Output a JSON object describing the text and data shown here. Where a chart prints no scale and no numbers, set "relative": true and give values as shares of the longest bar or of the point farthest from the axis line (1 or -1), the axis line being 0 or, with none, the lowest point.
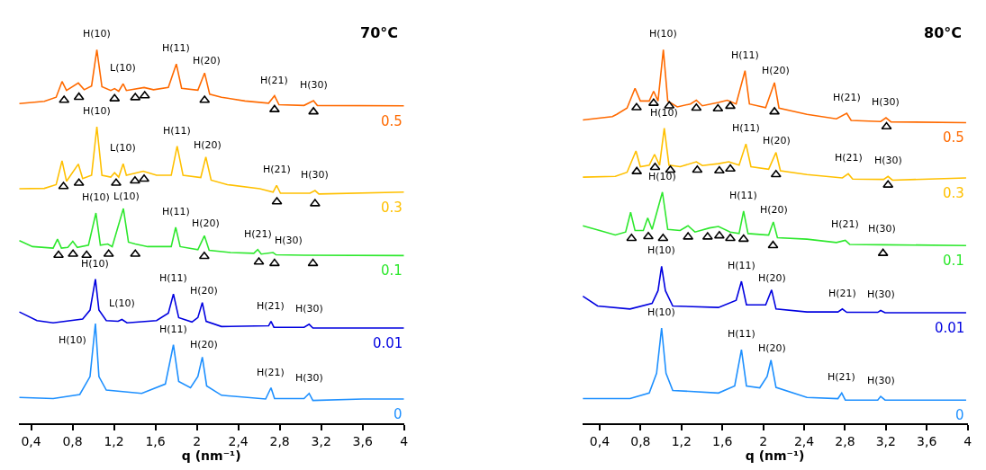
{
  "chart_data": [
    {
      "type": "line",
      "title": "70°C",
      "xlabel": "q (nm⁻¹)",
      "relative": true,
      "grid": false,
      "legend": false,
      "line_style": "solid",
      "xlim": [
        0.28,
        4
      ],
      "xticks": [
        {
          "value": 0.4,
          "label": "0,4"
        },
        {
          "value": 0.8,
          "label": "0,8"
        },
        {
          "value": 1.2,
          "label": "1,2"
        },
        {
          "value": 1.6,
          "label": "1,6"
        },
        2,
        {
          "value": 2.4,
          "label": "2,4"
        },
        {
          "value": 2.8,
          "label": "2,8"
        },
        {
          "value": 3.2,
          "label": "3,2"
        },
        {
          "value": 3.6,
          "label": "3,6"
        },
        4
      ],
      "series": [
        {
          "name": "0.5",
          "color": "#ff6a00",
          "x": [
            0.287,
            0.528,
            0.642,
            0.699,
            0.742,
            0.856,
            0.913,
            0.984,
            1.035,
            1.084,
            1.169,
            1.206,
            1.246,
            1.289,
            1.32,
            1.491,
            1.582,
            1.725,
            1.802,
            1.853,
            2.01,
            2.075,
            2.124,
            2.238,
            2.465,
            2.693,
            2.75,
            2.793,
            3.035,
            3.126,
            3.163,
            4.0
          ],
          "values": [
            0.856,
            0.862,
            0.873,
            0.915,
            0.891,
            0.911,
            0.893,
            0.903,
            1.0,
            0.901,
            0.891,
            0.896,
            0.889,
            0.909,
            0.891,
            0.899,
            0.893,
            0.899,
            0.962,
            0.897,
            0.892,
            0.938,
            0.881,
            0.873,
            0.863,
            0.857,
            0.877,
            0.853,
            0.851,
            0.864,
            0.851,
            0.85
          ]
        },
        {
          "name": "0.3",
          "color": "#ffc000",
          "x": [
            0.287,
            0.528,
            0.642,
            0.699,
            0.742,
            0.856,
            0.898,
            0.984,
            1.035,
            1.084,
            1.169,
            1.206,
            1.246,
            1.289,
            1.32,
            1.483,
            1.611,
            1.753,
            1.81,
            1.867,
            2.038,
            2.087,
            2.138,
            2.295,
            2.608,
            2.736,
            2.77,
            2.807,
            3.092,
            3.141,
            3.178,
            4.0
          ],
          "values": [
            0.628,
            0.629,
            0.639,
            0.703,
            0.648,
            0.694,
            0.655,
            0.664,
            0.794,
            0.664,
            0.659,
            0.671,
            0.659,
            0.695,
            0.664,
            0.675,
            0.664,
            0.664,
            0.742,
            0.664,
            0.658,
            0.713,
            0.651,
            0.639,
            0.628,
            0.619,
            0.637,
            0.616,
            0.616,
            0.623,
            0.614,
            0.619
          ]
        },
        {
          "name": "0.1",
          "color": "#2ee82e",
          "x": [
            0.287,
            0.414,
            0.613,
            0.655,
            0.693,
            0.755,
            0.803,
            0.846,
            0.954,
            1.026,
            1.069,
            1.14,
            1.183,
            1.291,
            1.34,
            1.406,
            1.526,
            1.753,
            1.796,
            1.839,
            2.01,
            2.073,
            2.119,
            2.325,
            2.55,
            2.588,
            2.622,
            2.736,
            2.765,
            3.035,
            4.0
          ],
          "values": [
            0.489,
            0.473,
            0.469,
            0.493,
            0.469,
            0.471,
            0.487,
            0.471,
            0.477,
            0.563,
            0.477,
            0.48,
            0.473,
            0.575,
            0.485,
            0.48,
            0.473,
            0.473,
            0.525,
            0.473,
            0.465,
            0.502,
            0.463,
            0.457,
            0.455,
            0.465,
            0.453,
            0.457,
            0.451,
            0.45,
            0.449
          ]
        },
        {
          "name": "0.01",
          "color": "#0000e0",
          "x": [
            0.287,
            0.457,
            0.613,
            0.898,
            0.969,
            1.021,
            1.055,
            1.126,
            1.24,
            1.277,
            1.326,
            1.611,
            1.725,
            1.774,
            1.825,
            1.953,
            2.01,
            2.053,
            2.09,
            2.238,
            2.693,
            2.716,
            2.744,
            3.035,
            3.084,
            3.12,
            4.0
          ],
          "values": [
            0.298,
            0.275,
            0.269,
            0.279,
            0.303,
            0.386,
            0.303,
            0.275,
            0.273,
            0.278,
            0.269,
            0.275,
            0.295,
            0.346,
            0.283,
            0.271,
            0.283,
            0.323,
            0.273,
            0.259,
            0.261,
            0.273,
            0.257,
            0.257,
            0.265,
            0.255,
            0.255
          ]
        },
        {
          "name": "0",
          "color": "#1e90ff",
          "x": [
            0.287,
            0.613,
            0.87,
            0.969,
            1.021,
            1.055,
            1.126,
            1.468,
            1.696,
            1.774,
            1.825,
            1.939,
            2.01,
            2.053,
            2.095,
            2.238,
            2.664,
            2.716,
            2.75,
            3.035,
            3.084,
            3.12,
            3.604,
            4.0
          ],
          "values": [
            0.069,
            0.066,
            0.077,
            0.125,
            0.267,
            0.125,
            0.089,
            0.08,
            0.105,
            0.21,
            0.112,
            0.095,
            0.125,
            0.177,
            0.1,
            0.075,
            0.065,
            0.095,
            0.066,
            0.066,
            0.08,
            0.061,
            0.065,
            0.065
          ]
        },
        {
          "type": "scatter",
          "marker": "triangle",
          "color": "#000000",
          "x": [
            0.719,
            0.862,
            1.206,
            1.406,
            1.497,
            2.075,
            2.75,
            3.126,
            0.713,
            0.862,
            1.221,
            1.403,
            1.491,
            2.773,
            3.141,
            0.665,
            0.805,
            0.936,
            1.149,
            1.406,
            2.072,
            2.599,
            2.75,
            3.121
          ],
          "values": [
            0.865,
            0.873,
            0.869,
            0.872,
            0.877,
            0.865,
            0.84,
            0.834,
            0.634,
            0.643,
            0.643,
            0.649,
            0.654,
            0.593,
            0.588,
            0.45,
            0.453,
            0.45,
            0.453,
            0.453,
            0.447,
            0.432,
            0.428,
            0.428
          ]
        }
      ],
      "annotations": [
        {
          "text": "H(10)",
          "x": 1.035,
          "y": 1.0
        },
        {
          "text": "L(10)",
          "x": 1.289,
          "y": 0.909
        },
        {
          "text": "H(11)",
          "x": 1.802,
          "y": 0.962
        },
        {
          "text": "H(20)",
          "x": 2.075,
          "y": 0.938
        },
        {
          "text": "H(21)",
          "x": 2.75,
          "y": 0.877
        },
        {
          "text": "H(30)",
          "x": 3.126,
          "y": 0.864
        },
        {
          "text": "H(10)",
          "x": 1.035,
          "y": 0.794
        },
        {
          "text": "L(10)",
          "x": 1.289,
          "y": 0.695
        },
        {
          "text": "H(11)",
          "x": 1.81,
          "y": 0.742
        },
        {
          "text": "H(20)",
          "x": 2.087,
          "y": 0.713
        },
        {
          "text": "H(21)",
          "x": 2.77,
          "y": 0.637
        },
        {
          "text": "H(30)",
          "x": 3.141,
          "y": 0.623
        },
        {
          "text": "H(10)",
          "x": 1.026,
          "y": 0.563
        },
        {
          "text": "L(10)",
          "x": 1.291,
          "y": 0.575
        },
        {
          "text": "H(11)",
          "x": 1.796,
          "y": 0.525
        },
        {
          "text": "H(20)",
          "x": 2.073,
          "y": 0.502
        },
        {
          "text": "H(21)",
          "x": 2.588,
          "y": 0.465
        },
        {
          "text": "H(30)",
          "x": 2.736,
          "y": 0.457
        },
        {
          "text": "H(10)",
          "x": 1.021,
          "y": 0.386
        },
        {
          "text": "L(10)",
          "x": 1.277,
          "y": 0.278
        },
        {
          "text": "H(11)",
          "x": 1.774,
          "y": 0.346
        },
        {
          "text": "H(20)",
          "x": 2.053,
          "y": 0.323
        },
        {
          "text": "H(21)",
          "x": 2.716,
          "y": 0.273
        },
        {
          "text": "H(30)",
          "x": 3.084,
          "y": 0.265
        },
        {
          "text": "H(10)",
          "x": 1.021,
          "y": 0.267
        },
        {
          "text": "H(11)",
          "x": 1.774,
          "y": 0.21
        },
        {
          "text": "H(20)",
          "x": 2.053,
          "y": 0.177
        },
        {
          "text": "H(21)",
          "x": 2.716,
          "y": 0.095
        },
        {
          "text": "H(30)",
          "x": 3.084,
          "y": 0.08
        }
      ]
    },
    {
      "type": "line",
      "title": "80°C",
      "xlabel": "q (nm⁻¹)",
      "relative": true,
      "grid": false,
      "legend": false,
      "line_style": "solid",
      "xlim": [
        0.23,
        4
      ],
      "xticks": [
        {
          "value": 0.4,
          "label": "0,4"
        },
        {
          "value": 0.8,
          "label": "0,8"
        },
        {
          "value": 1.2,
          "label": "1,2"
        },
        {
          "value": 1.6,
          "label": "1,6"
        },
        2,
        {
          "value": 2.4,
          "label": "2,4"
        },
        {
          "value": 2.8,
          "label": "2,8"
        },
        {
          "value": 3.2,
          "label": "3,2"
        },
        {
          "value": 3.6,
          "label": "3,6"
        },
        4
      ],
      "series": [
        {
          "name": "0.5",
          "color": "#ff6a00",
          "x": [
            0.236,
            0.524,
            0.567,
            0.668,
            0.746,
            0.798,
            0.885,
            0.928,
            0.971,
            1.023,
            1.066,
            1.159,
            1.288,
            1.346,
            1.404,
            1.562,
            1.649,
            1.735,
            1.822,
            1.865,
            2.024,
            2.11,
            2.154,
            2.428,
            2.716,
            2.817,
            2.86,
            3.149,
            3.201,
            3.25,
            3.985
          ],
          "values": [
            0.812,
            0.821,
            0.827,
            0.844,
            0.897,
            0.863,
            0.863,
            0.889,
            0.863,
            1.0,
            0.863,
            0.847,
            0.855,
            0.865,
            0.85,
            0.859,
            0.865,
            0.855,
            0.944,
            0.855,
            0.845,
            0.912,
            0.844,
            0.827,
            0.815,
            0.83,
            0.811,
            0.808,
            0.818,
            0.807,
            0.805
          ]
        },
        {
          "name": "0.3",
          "color": "#ffc000",
          "x": [
            0.236,
            0.553,
            0.668,
            0.755,
            0.798,
            0.885,
            0.937,
            0.986,
            1.032,
            1.078,
            1.187,
            1.346,
            1.404,
            1.562,
            1.663,
            1.764,
            1.831,
            1.88,
            2.053,
            2.125,
            2.168,
            2.428,
            2.774,
            2.832,
            2.875,
            3.178,
            3.221,
            3.264,
            3.985
          ],
          "values": [
            0.659,
            0.661,
            0.672,
            0.729,
            0.687,
            0.691,
            0.72,
            0.691,
            0.79,
            0.691,
            0.687,
            0.7,
            0.69,
            0.695,
            0.7,
            0.691,
            0.748,
            0.687,
            0.68,
            0.725,
            0.676,
            0.666,
            0.657,
            0.668,
            0.654,
            0.653,
            0.661,
            0.651,
            0.657
          ]
        },
        {
          "name": "0.1",
          "color": "#2ee82e",
          "x": [
            0.236,
            0.553,
            0.654,
            0.703,
            0.746,
            0.827,
            0.87,
            0.913,
            1.014,
            1.066,
            1.187,
            1.265,
            1.332,
            1.476,
            1.562,
            1.677,
            1.764,
            1.808,
            1.851,
            2.053,
            2.099,
            2.139,
            2.428,
            2.716,
            2.803,
            2.846,
            3.16,
            3.985
          ],
          "values": [
            0.529,
            0.504,
            0.512,
            0.565,
            0.516,
            0.516,
            0.55,
            0.519,
            0.619,
            0.519,
            0.516,
            0.529,
            0.512,
            0.523,
            0.527,
            0.512,
            0.508,
            0.568,
            0.508,
            0.504,
            0.539,
            0.497,
            0.493,
            0.484,
            0.49,
            0.479,
            0.478,
            0.476
          ]
        },
        {
          "name": "0.01",
          "color": "#0000e0",
          "x": [
            0.236,
            0.38,
            0.697,
            0.913,
            0.971,
            1.006,
            1.043,
            1.115,
            1.562,
            1.735,
            1.787,
            1.836,
            2.024,
            2.082,
            2.125,
            2.428,
            2.731,
            2.774,
            2.817,
            3.12,
            3.149,
            3.192,
            3.985
          ],
          "values": [
            0.34,
            0.314,
            0.306,
            0.321,
            0.355,
            0.42,
            0.355,
            0.314,
            0.31,
            0.329,
            0.38,
            0.317,
            0.317,
            0.357,
            0.306,
            0.298,
            0.298,
            0.306,
            0.297,
            0.297,
            0.302,
            0.296,
            0.296
          ]
        },
        {
          "name": "0",
          "color": "#1e90ff",
          "x": [
            0.236,
            0.697,
            0.885,
            0.957,
            1.006,
            1.049,
            1.115,
            1.562,
            1.721,
            1.787,
            1.836,
            1.966,
            2.038,
            2.076,
            2.125,
            2.428,
            2.731,
            2.768,
            2.803,
            3.12,
            3.149,
            3.192,
            3.985
          ],
          "values": [
            0.066,
            0.066,
            0.081,
            0.134,
            0.255,
            0.134,
            0.088,
            0.081,
            0.1,
            0.197,
            0.1,
            0.095,
            0.125,
            0.169,
            0.096,
            0.069,
            0.066,
            0.081,
            0.062,
            0.062,
            0.072,
            0.062,
            0.062
          ]
        },
        {
          "type": "scatter",
          "marker": "triangle",
          "color": "#000000",
          "x": [
            0.761,
            0.928,
            1.081,
            1.346,
            1.557,
            1.678,
            2.11,
            3.206,
            0.763,
            0.942,
            1.092,
            1.355,
            1.571,
            1.678,
            2.125,
            3.221,
            0.712,
            0.876,
            1.02,
            1.265,
            1.456,
            1.571,
            1.678,
            1.808,
            2.096,
            3.172
          ],
          "values": [
            0.845,
            0.857,
            0.85,
            0.844,
            0.842,
            0.849,
            0.834,
            0.794,
            0.674,
            0.685,
            0.678,
            0.678,
            0.676,
            0.681,
            0.666,
            0.638,
            0.495,
            0.5,
            0.495,
            0.499,
            0.499,
            0.502,
            0.495,
            0.493,
            0.476,
            0.455
          ]
        }
      ],
      "annotations": [
        {
          "text": "H(10)",
          "x": 1.023,
          "y": 1.0
        },
        {
          "text": "H(11)",
          "x": 1.822,
          "y": 0.944
        },
        {
          "text": "H(20)",
          "x": 2.11,
          "y": 0.912
        },
        {
          "text": "H(21)",
          "x": 2.817,
          "y": 0.83
        },
        {
          "text": "H(30)",
          "x": 3.201,
          "y": 0.818
        },
        {
          "text": "H(10)",
          "x": 1.032,
          "y": 0.79
        },
        {
          "text": "H(11)",
          "x": 1.831,
          "y": 0.748
        },
        {
          "text": "H(20)",
          "x": 2.125,
          "y": 0.725
        },
        {
          "text": "H(21)",
          "x": 2.832,
          "y": 0.668
        },
        {
          "text": "H(30)",
          "x": 3.221,
          "y": 0.661
        },
        {
          "text": "H(10)",
          "x": 1.014,
          "y": 0.619
        },
        {
          "text": "H(11)",
          "x": 1.808,
          "y": 0.568
        },
        {
          "text": "H(20)",
          "x": 2.099,
          "y": 0.539
        },
        {
          "text": "H(21)",
          "x": 2.803,
          "y": 0.49
        },
        {
          "text": "H(30)",
          "x": 3.16,
          "y": 0.478
        },
        {
          "text": "H(10)",
          "x": 1.006,
          "y": 0.42
        },
        {
          "text": "H(11)",
          "x": 1.787,
          "y": 0.38
        },
        {
          "text": "H(20)",
          "x": 2.082,
          "y": 0.357
        },
        {
          "text": "H(21)",
          "x": 2.774,
          "y": 0.306
        },
        {
          "text": "H(30)",
          "x": 3.149,
          "y": 0.302
        },
        {
          "text": "H(10)",
          "x": 1.006,
          "y": 0.255
        },
        {
          "text": "H(11)",
          "x": 1.787,
          "y": 0.197
        },
        {
          "text": "H(20)",
          "x": 2.076,
          "y": 0.169
        },
        {
          "text": "H(21)",
          "x": 2.768,
          "y": 0.081
        },
        {
          "text": "H(30)",
          "x": 3.149,
          "y": 0.072
        }
      ]
    }
  ]
}
